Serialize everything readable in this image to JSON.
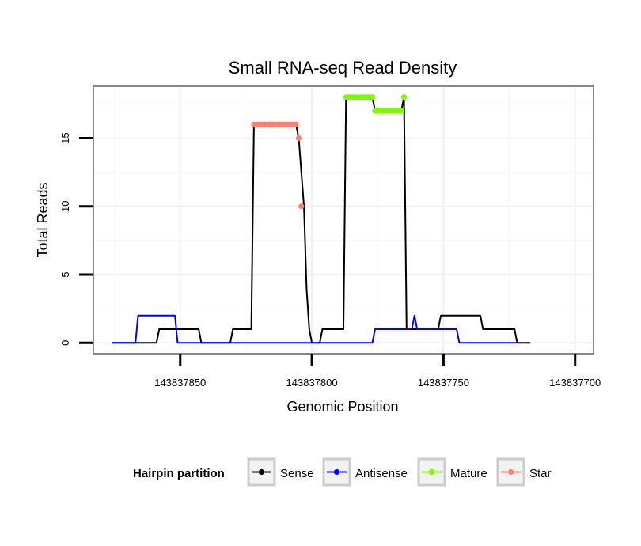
{
  "chart_data": {
    "type": "line",
    "title": "Small RNA-seq Read Density",
    "xlabel": "Genomic Position",
    "ylabel": "Total Reads",
    "x_reversed": true,
    "xlim": [
      143837883,
      143837693
    ],
    "ylim": [
      -0.8,
      18.8
    ],
    "x_ticks": [
      143837850,
      143837800,
      143837750,
      143837700
    ],
    "x_tick_labels": [
      "143837850",
      "143837800",
      "143837750",
      "143837700"
    ],
    "y_ticks": [
      0,
      5,
      10,
      15
    ],
    "y_tick_labels": [
      "0",
      "5",
      "10",
      "15"
    ],
    "grid": true,
    "legend": {
      "title": "Hairpin partition",
      "position": "bottom",
      "entries": [
        {
          "name": "Sense",
          "color": "#000000"
        },
        {
          "name": "Antisense",
          "color": "#0000ff"
        },
        {
          "name": "Mature",
          "color": "#7cfc00"
        },
        {
          "name": "Star",
          "color": "#fa8072"
        }
      ]
    },
    "series": [
      {
        "name": "Sense",
        "color": "#000000",
        "points": [
          [
            143837876,
            0
          ],
          [
            143837859,
            0
          ],
          [
            143837858,
            1
          ],
          [
            143837843,
            1
          ],
          [
            143837842,
            0
          ],
          [
            143837831,
            0
          ],
          [
            143837830,
            1
          ],
          [
            143837823,
            1
          ],
          [
            143837822,
            16
          ],
          [
            143837806,
            16
          ],
          [
            143837805,
            15
          ],
          [
            143837803,
            10
          ],
          [
            143837802,
            4
          ],
          [
            143837801,
            1
          ],
          [
            143837800,
            0
          ],
          [
            143837797,
            0
          ],
          [
            143837796,
            1
          ],
          [
            143837788,
            1
          ],
          [
            143837787,
            18
          ],
          [
            143837777,
            18
          ],
          [
            143837776,
            17
          ],
          [
            143837766,
            17
          ],
          [
            143837765,
            18
          ],
          [
            143837764,
            1
          ],
          [
            143837752,
            1
          ],
          [
            143837751,
            2
          ],
          [
            143837736,
            2
          ],
          [
            143837735,
            1
          ],
          [
            143837723,
            1
          ],
          [
            143837722,
            0
          ],
          [
            143837717,
            0
          ]
        ]
      },
      {
        "name": "Antisense",
        "color": "#0000ff",
        "points": [
          [
            143837876,
            0
          ],
          [
            143837867,
            0
          ],
          [
            143837866,
            2
          ],
          [
            143837852,
            2
          ],
          [
            143837851,
            0
          ],
          [
            143837777,
            0
          ],
          [
            143837776,
            1
          ],
          [
            143837762,
            1
          ],
          [
            143837761,
            2
          ],
          [
            143837760,
            1
          ],
          [
            143837745,
            1
          ],
          [
            143837744,
            0
          ],
          [
            143837722,
            0
          ]
        ]
      },
      {
        "name": "Mature",
        "color": "#7cfc00",
        "points": [
          [
            143837787,
            18
          ],
          [
            143837786,
            18
          ],
          [
            143837785,
            18
          ],
          [
            143837784,
            18
          ],
          [
            143837783,
            18
          ],
          [
            143837782,
            18
          ],
          [
            143837781,
            18
          ],
          [
            143837780,
            18
          ],
          [
            143837779,
            18
          ],
          [
            143837778,
            18
          ],
          [
            143837777,
            18
          ],
          [
            143837776,
            17
          ],
          [
            143837775,
            17
          ],
          [
            143837774,
            17
          ],
          [
            143837773,
            17
          ],
          [
            143837772,
            17
          ],
          [
            143837771,
            17
          ],
          [
            143837770,
            17
          ],
          [
            143837769,
            17
          ],
          [
            143837768,
            17
          ],
          [
            143837767,
            17
          ],
          [
            143837766,
            17
          ],
          [
            143837765,
            18
          ]
        ]
      },
      {
        "name": "Star",
        "color": "#fa8072",
        "points": [
          [
            143837822,
            16
          ],
          [
            143837821,
            16
          ],
          [
            143837820,
            16
          ],
          [
            143837819,
            16
          ],
          [
            143837818,
            16
          ],
          [
            143837817,
            16
          ],
          [
            143837816,
            16
          ],
          [
            143837815,
            16
          ],
          [
            143837814,
            16
          ],
          [
            143837813,
            16
          ],
          [
            143837812,
            16
          ],
          [
            143837811,
            16
          ],
          [
            143837810,
            16
          ],
          [
            143837809,
            16
          ],
          [
            143837808,
            16
          ],
          [
            143837807,
            16
          ],
          [
            143837806,
            16
          ],
          [
            143837805,
            15
          ],
          [
            143837804,
            10
          ]
        ]
      }
    ]
  }
}
